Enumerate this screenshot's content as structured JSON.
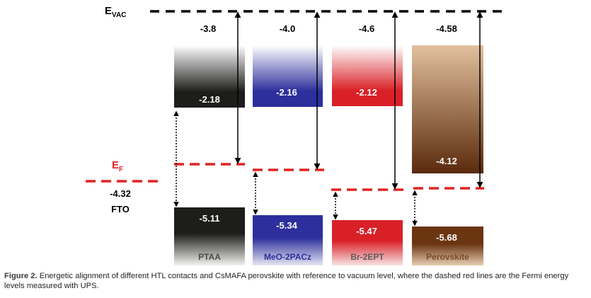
{
  "vacuum": {
    "label_main": "E",
    "label_sub": "VAC",
    "color": "#000000"
  },
  "fermi": {
    "label_main": "E",
    "label_sub": "F",
    "color": "#e02424"
  },
  "fto": {
    "value": "-4.32",
    "label": "FTO"
  },
  "materials": [
    {
      "name": "PTAA",
      "lumo_top": "-3.8",
      "lumo": "-2.18",
      "homo": "-5.11",
      "colors": {
        "lumo_top": "#ffffff",
        "lumo_bottom": "#1d1d1b",
        "homo_top": "#1d1d1b",
        "homo_bottom": "#f2f2ee"
      }
    },
    {
      "name": "MeO-2PACz",
      "lumo_top": "-4.0",
      "lumo": "-2.16",
      "homo": "-5.34",
      "colors": {
        "lumo_top": "#ffffff",
        "lumo_bottom": "#2c2f9c",
        "homo_top": "#2c2f9c",
        "homo_bottom": "#e6e6f3"
      }
    },
    {
      "name": "Br-2EPT",
      "lumo_top": "-4.6",
      "lumo": "-2.12",
      "homo": "-5.47",
      "colors": {
        "lumo_top": "#ffffff",
        "lumo_bottom": "#d92027",
        "homo_top": "#d92027",
        "homo_bottom": "#f7e3e3"
      }
    },
    {
      "name": "Perovskite",
      "lumo_top": "-4.58",
      "lumo": "-4.12",
      "homo": "-5.68",
      "colors": {
        "lumo_top": "#e2c09e",
        "lumo_bottom": "#5a2a0c",
        "homo_top": "#6b3512",
        "homo_bottom": "#e6cdb2"
      }
    }
  ],
  "caption": {
    "label": "Figure 2.",
    "text": "Energetic alignment of different HTL contacts and CsMAFA perovskite with reference to vacuum level, where the dashed red lines are the Fermi energy levels measured with UPS."
  }
}
